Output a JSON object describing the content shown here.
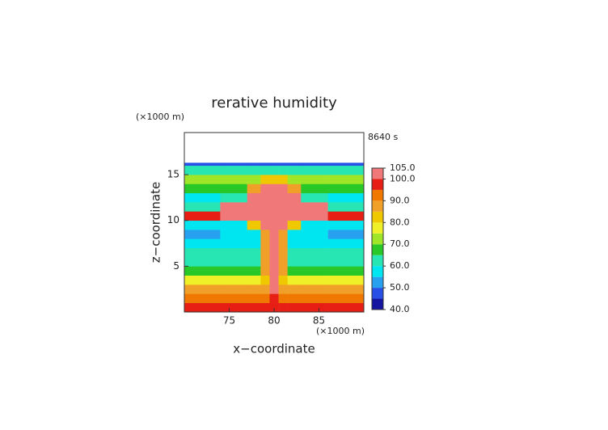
{
  "chart_data": {
    "type": "heatmap",
    "title": "rerative humidity",
    "time_label": "8640 s",
    "x_unit": "(×1000 m)",
    "y_unit": "(×1000 m)",
    "x_label": "x−coordinate",
    "y_label": "z−coordinate",
    "x": [
      70,
      74,
      77,
      78.5,
      79.5,
      80.5,
      81.5,
      83,
      86,
      90
    ],
    "y": [
      0,
      1,
      2,
      3,
      4,
      5,
      6,
      7,
      8,
      9,
      10,
      11,
      12,
      13,
      14,
      15,
      16,
      16.3
    ],
    "z": [
      [
        97,
        97,
        97,
        97,
        97,
        97,
        97,
        97,
        97
      ],
      [
        92,
        92,
        92,
        92,
        95,
        92,
        92,
        92,
        92
      ],
      [
        87,
        87,
        87,
        88,
        102,
        88,
        87,
        87,
        87
      ],
      [
        78,
        78,
        78,
        80,
        102,
        80,
        78,
        78,
        78
      ],
      [
        68,
        68,
        68,
        85,
        102,
        85,
        68,
        68,
        68
      ],
      [
        63,
        63,
        63,
        85,
        102,
        85,
        63,
        63,
        63
      ],
      [
        60,
        60,
        60,
        85,
        102,
        85,
        60,
        60,
        60
      ],
      [
        57,
        57,
        57,
        85,
        102,
        85,
        57,
        57,
        57
      ],
      [
        52,
        57,
        57,
        85,
        102,
        85,
        57,
        57,
        52
      ],
      [
        57,
        58,
        80,
        102,
        102,
        102,
        80,
        58,
        57
      ],
      [
        95,
        102,
        102,
        102,
        102,
        102,
        102,
        102,
        95
      ],
      [
        62,
        102,
        102,
        102,
        102,
        102,
        102,
        102,
        62
      ],
      [
        58,
        62,
        102,
        102,
        102,
        102,
        102,
        62,
        58
      ],
      [
        65,
        65,
        85,
        102,
        102,
        102,
        85,
        65,
        65
      ],
      [
        72,
        72,
        72,
        80,
        80,
        80,
        72,
        72,
        72
      ],
      [
        62,
        62,
        62,
        62,
        62,
        62,
        62,
        62,
        62
      ],
      [
        45,
        45,
        45,
        45,
        45,
        45,
        45,
        45,
        45
      ]
    ],
    "levels": [
      40,
      45,
      50,
      55,
      60,
      65,
      70,
      75,
      80,
      85,
      90,
      95,
      100,
      105
    ],
    "colors": [
      "#1414a0",
      "#2850e6",
      "#28a0f0",
      "#00e6f0",
      "#28e6b4",
      "#28c828",
      "#a0e628",
      "#f0f028",
      "#f0c800",
      "#f0a028",
      "#f07800",
      "#e61e14",
      "#f07878"
    ],
    "xlim": [
      70,
      90
    ],
    "ylim": [
      0,
      19.6
    ],
    "xticks": [
      75,
      80,
      85
    ],
    "yticks": [
      5,
      10,
      15
    ],
    "colorbar_ticks": [
      {
        "value": 40,
        "label": "40.0"
      },
      {
        "value": 50,
        "label": "50.0"
      },
      {
        "value": 60,
        "label": "60.0"
      },
      {
        "value": 70,
        "label": "70.0"
      },
      {
        "value": 80,
        "label": "80.0"
      },
      {
        "value": 90,
        "label": "90.0"
      },
      {
        "value": 100,
        "label": "100.0"
      },
      {
        "value": 105,
        "label": "105.0"
      }
    ]
  }
}
